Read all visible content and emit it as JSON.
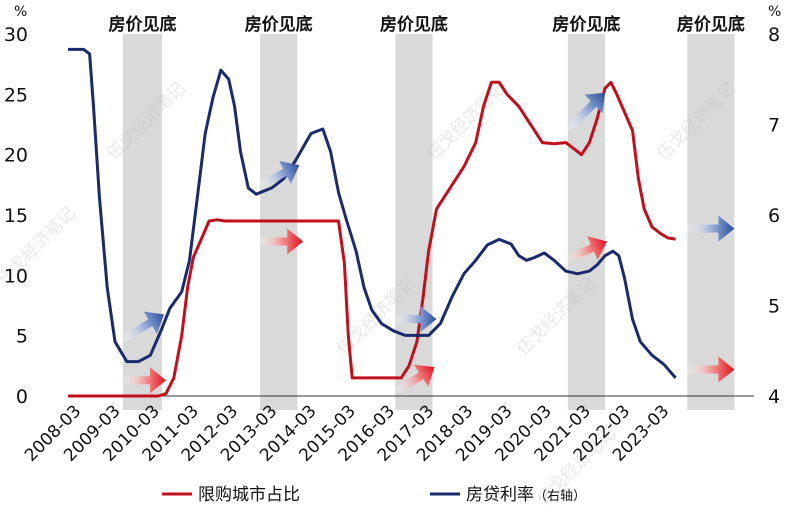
{
  "chart_data": {
    "type": "line",
    "title": "",
    "left_axis": {
      "unit": "%",
      "ticks": [
        0,
        5,
        10,
        15,
        20,
        25,
        30
      ],
      "range": [
        0,
        30
      ]
    },
    "right_axis": {
      "unit": "%",
      "ticks": [
        4,
        5,
        6,
        7,
        8
      ],
      "range": [
        4,
        8
      ]
    },
    "x_tick_labels": [
      "2008-03",
      "2009-03",
      "2010-03",
      "2011-03",
      "2012-03",
      "2013-03",
      "2014-03",
      "2015-03",
      "2016-03",
      "2017-03",
      "2018-03",
      "2019-03",
      "2020-03",
      "2021-03",
      "2022-03",
      "2023-03"
    ],
    "x_range": [
      2008.0,
      2025.5
    ],
    "bottom_bands": [
      {
        "label": "房价见底",
        "start": 2009.4,
        "end": 2010.4
      },
      {
        "label": "房价见底",
        "start": 2012.9,
        "end": 2013.85
      },
      {
        "label": "房价见底",
        "start": 2016.35,
        "end": 2017.3
      },
      {
        "label": "房价见底",
        "start": 2020.75,
        "end": 2021.7
      },
      {
        "label": "房价见底",
        "start": 2023.8,
        "end": 2025.0
      }
    ],
    "series": [
      {
        "name": "限购城市占比",
        "axis": "left",
        "color": "#C0101E",
        "points": [
          [
            2008.0,
            0
          ],
          [
            2009.0,
            0
          ],
          [
            2010.0,
            0
          ],
          [
            2010.3,
            0
          ],
          [
            2010.5,
            0.2
          ],
          [
            2010.7,
            1.5
          ],
          [
            2010.9,
            5
          ],
          [
            2011.05,
            9
          ],
          [
            2011.2,
            11.5
          ],
          [
            2011.4,
            13
          ],
          [
            2011.6,
            14.5
          ],
          [
            2011.8,
            14.6
          ],
          [
            2012.0,
            14.5
          ],
          [
            2013.0,
            14.5
          ],
          [
            2014.0,
            14.5
          ],
          [
            2014.9,
            14.5
          ],
          [
            2015.05,
            11
          ],
          [
            2015.15,
            5
          ],
          [
            2015.25,
            1.5
          ],
          [
            2015.5,
            1.5
          ],
          [
            2016.0,
            1.5
          ],
          [
            2016.5,
            1.5
          ],
          [
            2016.7,
            2.5
          ],
          [
            2016.9,
            4.5
          ],
          [
            2017.05,
            8
          ],
          [
            2017.2,
            12
          ],
          [
            2017.4,
            15.5
          ],
          [
            2017.7,
            17
          ],
          [
            2018.1,
            19
          ],
          [
            2018.4,
            21
          ],
          [
            2018.6,
            24
          ],
          [
            2018.8,
            26
          ],
          [
            2019.0,
            26
          ],
          [
            2019.2,
            25
          ],
          [
            2019.5,
            24
          ],
          [
            2019.8,
            22.5
          ],
          [
            2020.1,
            21
          ],
          [
            2020.4,
            20.9
          ],
          [
            2020.7,
            21
          ],
          [
            2020.9,
            20.5
          ],
          [
            2021.1,
            20
          ],
          [
            2021.3,
            21
          ],
          [
            2021.5,
            23
          ],
          [
            2021.7,
            25.5
          ],
          [
            2021.85,
            26
          ],
          [
            2022.0,
            25
          ],
          [
            2022.2,
            23.5
          ],
          [
            2022.4,
            22
          ],
          [
            2022.55,
            18
          ],
          [
            2022.7,
            15.5
          ],
          [
            2022.9,
            14
          ],
          [
            2023.1,
            13.5
          ],
          [
            2023.3,
            13.1
          ],
          [
            2023.5,
            13
          ]
        ]
      },
      {
        "name": "房贷利率",
        "axis": "right",
        "color": "#1A2A6C",
        "points": [
          [
            2008.0,
            7.83
          ],
          [
            2008.4,
            7.83
          ],
          [
            2008.55,
            7.78
          ],
          [
            2008.65,
            7.2
          ],
          [
            2008.8,
            6.2
          ],
          [
            2009.0,
            5.2
          ],
          [
            2009.2,
            4.6
          ],
          [
            2009.5,
            4.38
          ],
          [
            2009.8,
            4.38
          ],
          [
            2010.1,
            4.45
          ],
          [
            2010.4,
            4.75
          ],
          [
            2010.6,
            4.97
          ],
          [
            2010.9,
            5.15
          ],
          [
            2011.1,
            5.5
          ],
          [
            2011.3,
            6.2
          ],
          [
            2011.5,
            6.9
          ],
          [
            2011.7,
            7.3
          ],
          [
            2011.9,
            7.6
          ],
          [
            2012.1,
            7.5
          ],
          [
            2012.25,
            7.2
          ],
          [
            2012.4,
            6.7
          ],
          [
            2012.6,
            6.3
          ],
          [
            2012.8,
            6.23
          ],
          [
            2013.2,
            6.3
          ],
          [
            2013.5,
            6.4
          ],
          [
            2013.8,
            6.6
          ],
          [
            2014.0,
            6.75
          ],
          [
            2014.2,
            6.9
          ],
          [
            2014.5,
            6.95
          ],
          [
            2014.7,
            6.7
          ],
          [
            2014.9,
            6.25
          ],
          [
            2015.1,
            5.95
          ],
          [
            2015.35,
            5.6
          ],
          [
            2015.55,
            5.2
          ],
          [
            2015.75,
            4.95
          ],
          [
            2016.0,
            4.8
          ],
          [
            2016.3,
            4.72
          ],
          [
            2016.6,
            4.67
          ],
          [
            2016.9,
            4.67
          ],
          [
            2017.2,
            4.67
          ],
          [
            2017.5,
            4.8
          ],
          [
            2017.8,
            5.1
          ],
          [
            2018.1,
            5.35
          ],
          [
            2018.4,
            5.5
          ],
          [
            2018.7,
            5.67
          ],
          [
            2019.0,
            5.73
          ],
          [
            2019.3,
            5.68
          ],
          [
            2019.5,
            5.55
          ],
          [
            2019.7,
            5.5
          ],
          [
            2019.9,
            5.53
          ],
          [
            2020.15,
            5.58
          ],
          [
            2020.4,
            5.5
          ],
          [
            2020.7,
            5.38
          ],
          [
            2021.0,
            5.35
          ],
          [
            2021.3,
            5.38
          ],
          [
            2021.5,
            5.45
          ],
          [
            2021.7,
            5.55
          ],
          [
            2021.9,
            5.6
          ],
          [
            2022.05,
            5.55
          ],
          [
            2022.2,
            5.3
          ],
          [
            2022.4,
            4.85
          ],
          [
            2022.6,
            4.6
          ],
          [
            2022.9,
            4.45
          ],
          [
            2023.2,
            4.35
          ],
          [
            2023.5,
            4.2
          ]
        ]
      }
    ],
    "arrows": [
      {
        "color": "blue",
        "x1": 2009.4,
        "y1": 4.63,
        "x2": 2010.45,
        "y2": 4.9,
        "axis": "right"
      },
      {
        "color": "red",
        "x1": 2009.4,
        "y1": 1.3,
        "x2": 2010.5,
        "y2": 1.3,
        "axis": "left"
      },
      {
        "color": "blue",
        "x1": 2012.9,
        "y1": 6.33,
        "x2": 2013.9,
        "y2": 6.55,
        "axis": "right"
      },
      {
        "color": "red",
        "x1": 2012.85,
        "y1": 12.8,
        "x2": 2014.0,
        "y2": 12.8,
        "axis": "left"
      },
      {
        "color": "blue",
        "x1": 2016.35,
        "y1": 4.85,
        "x2": 2017.4,
        "y2": 4.85,
        "axis": "right"
      },
      {
        "color": "red",
        "x1": 2016.4,
        "y1": 0.4,
        "x2": 2017.35,
        "y2": 2.4,
        "axis": "left"
      },
      {
        "color": "blue",
        "x1": 2020.75,
        "y1": 6.95,
        "x2": 2021.7,
        "y2": 7.35,
        "axis": "right"
      },
      {
        "color": "red",
        "x1": 2020.7,
        "y1": 11.3,
        "x2": 2021.75,
        "y2": 12.8,
        "axis": "left"
      },
      {
        "color": "blue",
        "x1": 2023.8,
        "y1": 5.85,
        "x2": 2025.0,
        "y2": 5.85,
        "axis": "right"
      },
      {
        "color": "red",
        "x1": 2023.8,
        "y1": 2.2,
        "x2": 2025.0,
        "y2": 2.2,
        "axis": "left"
      }
    ],
    "legend": {
      "placement": "bottom",
      "items": [
        {
          "label": "限购城市占比",
          "suffix": "",
          "color": "#C0101E"
        },
        {
          "label": "房贷利率",
          "suffix": "（右轴）",
          "color": "#1A2A6C"
        }
      ]
    },
    "watermark": "伍戈经济笔记"
  }
}
